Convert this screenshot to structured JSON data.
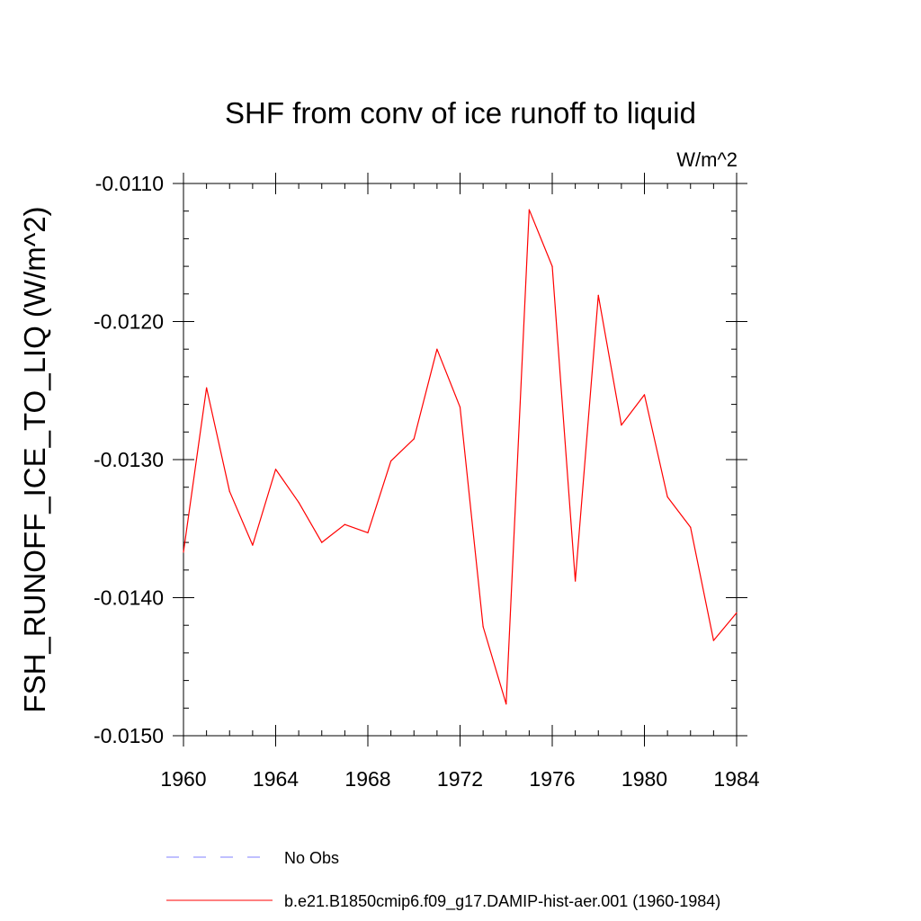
{
  "chart_data": {
    "type": "line",
    "title": "SHF from conv of ice runoff to liquid",
    "units_label": "W/m^2",
    "ylabel": "FSH_RUNOFF_ICE_TO_LIQ  (W/m^2)",
    "xlabel": "",
    "xlim": [
      1960,
      1984
    ],
    "ylim": [
      -0.015,
      -0.011
    ],
    "x_ticks": [
      1960,
      1964,
      1968,
      1972,
      1976,
      1980,
      1984
    ],
    "x_tick_labels": [
      "1960",
      "1964",
      "1968",
      "1972",
      "1976",
      "1980",
      "1984"
    ],
    "y_ticks": [
      -0.011,
      -0.012,
      -0.013,
      -0.014,
      -0.015
    ],
    "y_tick_labels": [
      "-0.0110",
      "-0.0120",
      "-0.0130",
      "-0.0140",
      "-0.0150"
    ],
    "grid": false,
    "legend_position": "bottom",
    "series": [
      {
        "name": "b.e21.B1850cmip6.f09_g17.DAMIP-hist-aer.001 (1960-1984)",
        "color": "#ff0000",
        "style": "solid",
        "x": [
          1960,
          1961,
          1962,
          1963,
          1964,
          1965,
          1966,
          1967,
          1968,
          1969,
          1970,
          1971,
          1972,
          1973,
          1974,
          1975,
          1976,
          1977,
          1978,
          1979,
          1980,
          1981,
          1982,
          1983,
          1984
        ],
        "values": [
          -0.01367,
          -0.01248,
          -0.01323,
          -0.01362,
          -0.01307,
          -0.01331,
          -0.0136,
          -0.01347,
          -0.01353,
          -0.01301,
          -0.01285,
          -0.0122,
          -0.01262,
          -0.01421,
          -0.01477,
          -0.01119,
          -0.0116,
          -0.01388,
          -0.01181,
          -0.01275,
          -0.01253,
          -0.01327,
          -0.01349,
          -0.01431,
          -0.01411
        ]
      }
    ],
    "legend": [
      {
        "label": "No Obs",
        "color": "#8080ff",
        "style": "dashed"
      },
      {
        "label": "b.e21.B1850cmip6.f09_g17.DAMIP-hist-aer.001 (1960-1984)",
        "color": "#ff0000",
        "style": "solid"
      }
    ]
  }
}
